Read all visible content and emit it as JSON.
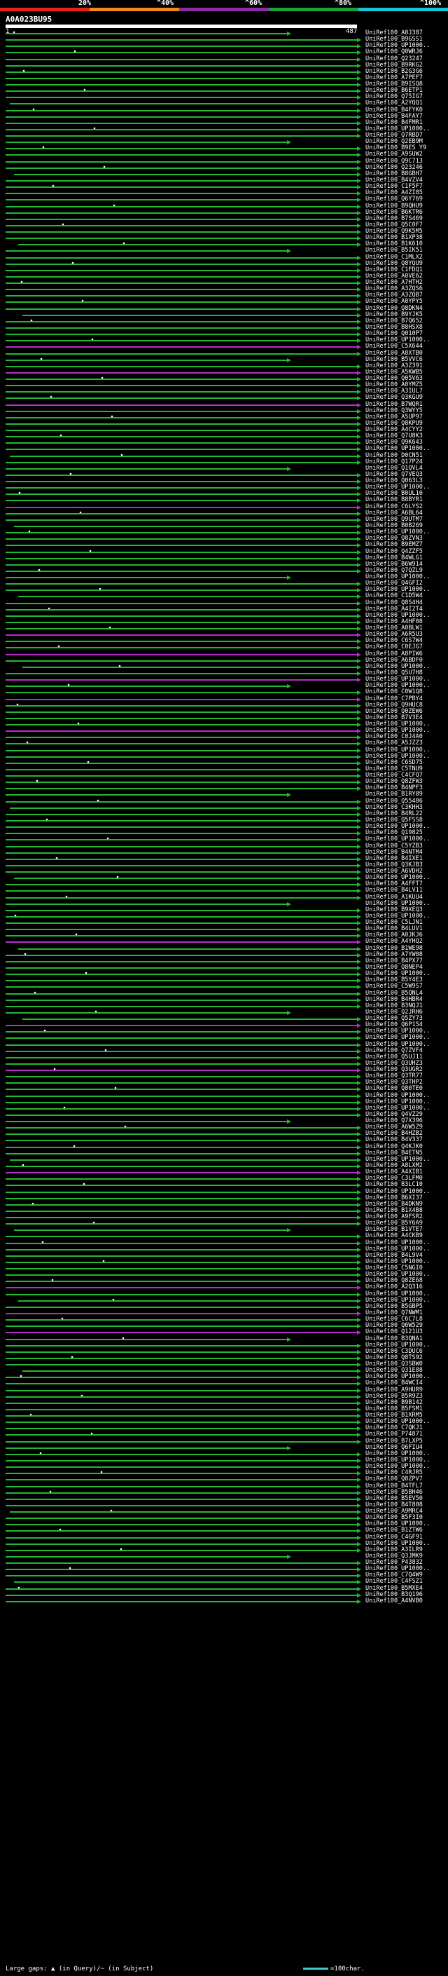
{
  "scale_labels": [
    "20%",
    "^40%",
    "^60%",
    "^80%",
    "^100%"
  ],
  "scale_colors": [
    "#e8201c",
    "#f08a1c",
    "#8e2ca8",
    "#1aa23a",
    "#17c6d6"
  ],
  "query": {
    "id": "A0A023BU95",
    "start": "1",
    "end": "487"
  },
  "colors": {
    "hit": "#22b832",
    "hit_alt": "#b42ec8",
    "query": "#ffffff",
    "background": "#000000"
  },
  "hits": [
    "UniRef100_A0J387",
    "UniRef100_B9GSS1",
    "UniRef100_UP1000..",
    "UniRef100_Q0WRJ6",
    "UniRef100_Q23247",
    "UniRef100_B9RKG2",
    "UniRef100_B2G3G6",
    "UniRef100_A7PEF7",
    "UniRef100_B9ISQ8",
    "UniRef100_B6ETP1",
    "UniRef100_Q75IG7",
    "UniRef100_A2YQQ1",
    "UniRef100_B4FYK0",
    "UniRef100_B4FAY7",
    "UniRef100_B4FMR1",
    "UniRef100_UP1000..",
    "UniRef100_Q7RBD7",
    "UniRef100_Q2EB9M",
    "UniRef100_B9ES Y9",
    "UniRef100_A9SUW2",
    "UniRef100_Q9C713",
    "UniRef100_Q23246",
    "UniRef100_B8GBH7",
    "UniRef100_B4VZV4",
    "UniRef100_C1F5F7",
    "UniRef100_A4ZI85",
    "UniRef100_Q6Y769",
    "UniRef100_B9QHU9",
    "UniRef100_B6KTR6",
    "UniRef100_B7S469",
    "UniRef100_Q5C0F7",
    "UniRef100_Q9K5M5",
    "UniRef100_B1XP38",
    "UniRef100_B1K610",
    "UniRef100_B5IK51",
    "UniRef100_C1MLX2",
    "UniRef100_Q8YQU9",
    "UniRef100_C1FDQ1",
    "UniRef100_A0VE62",
    "UniRef100_A7HTH2",
    "UniRef100_A3ZQS6",
    "UniRef100_A3ZQB7",
    "UniRef100_A0YPY5",
    "UniRef100_Q8DKN4",
    "UniRef100_B9YJK5",
    "UniRef100_B7Q652",
    "UniRef100_B8HSX8",
    "UniRef100_Q010P7",
    "UniRef100_UP1000..",
    "UniRef100_C5X644",
    "UniRef100_A8XTB0",
    "UniRef100_B5VVC6",
    "UniRef100_A3Z391",
    "UniRef100_A5KWB5",
    "UniRef100_Q05V63",
    "UniRef100_A0YMZ5",
    "UniRef100_A3IUL7",
    "UniRef100_Q3KGU9",
    "UniRef100_B7WQR1",
    "UniRef100_Q3WYY5",
    "UniRef100_A5UP97",
    "UniRef100_Q8KPU9",
    "UniRef100_A4CYY2",
    "UniRef100_Q7U8K3",
    "UniRef100_Q9K643",
    "UniRef100_UP1000..",
    "UniRef100_D0CN51",
    "UniRef100_Q17P24",
    "UniRef100_Q1QVL4",
    "UniRef100_Q7VEQ3",
    "UniRef100_Q063L3",
    "UniRef100_UP1000..",
    "UniRef100_B0UL10",
    "UniRef100_B8BYR1",
    "UniRef100_C6LYS2",
    "UniRef100_A6BL64",
    "UniRef100_Q9UTM7",
    "UniRef100_B0B269",
    "UniRef100_UP1000..",
    "UniRef100_Q8ZVN3",
    "UniRef100_B9EMZ7",
    "UniRef100_Q4ZZF5",
    "UniRef100_B4WLG1",
    "UniRef100_B6W914",
    "UniRef100_Q7QZL9",
    "UniRef100_UP1000..",
    "UniRef100_Q4GFI2",
    "UniRef100_UP1000..",
    "UniRef100_C1D5W4",
    "UniRef100_Q8S4H4",
    "UniRef100_A4I2T4",
    "UniRef100_UP1000..",
    "UniRef100_A4HF08",
    "UniRef100_A0BLW1",
    "UniRef100_A6R5U3",
    "UniRef100_C6S7W4",
    "UniRef100_C0EJG7",
    "UniRef100_A8PIW6",
    "UniRef100_A6BDF0",
    "UniRef100_UP1000..",
    "UniRef100_Q5U7H8",
    "UniRef100_UP1000..",
    "UniRef100_UP1000..",
    "UniRef100_C0W1Q8",
    "UniRef100_C7PBY4",
    "UniRef100_Q9HUC8",
    "UniRef100_Q0ZEW6",
    "UniRef100_B7V3E4",
    "UniRef100_UP1000..",
    "UniRef100_UP1000..",
    "UniRef100_C0J4A0",
    "UniRef100_A5JZZ3",
    "UniRef100_UP1000..",
    "UniRef100_UP1000..",
    "UniRef100_C6SD75",
    "UniRef100_C5TNU9",
    "UniRef100_C4CFQ7",
    "UniRef100_Q8ZFW3",
    "UniRef100_B4NPF3",
    "UniRef100_B1RY89",
    "UniRef100_Q55486",
    "UniRef100_C3KHH3",
    "UniRef100_B4RL22",
    "UniRef100_Q5FSS8",
    "UniRef100_UP1000..",
    "UniRef100_Q19825",
    "UniRef100_UP1000..",
    "UniRef100_C5YZB3",
    "UniRef100_B4NTM4",
    "UniRef100_B4IXE1",
    "UniRef100_Q3KJB3",
    "UniRef100_A6VDH2",
    "UniRef100_UP1000..",
    "UniRef100_A4FFT7",
    "UniRef100_B4LV11",
    "UniRef100_A1KUU4",
    "UniRef100_UP1000..",
    "UniRef100_B9XEQ3",
    "UniRef100_UP1000..",
    "UniRef100_C5LJN1",
    "UniRef100_B4LUV1",
    "UniRef100_A0JKJ6",
    "UniRef100_A4YHQ2",
    "UniRef100_B1WE98",
    "UniRef100_A7YW08",
    "UniRef100_B4PX77",
    "UniRef100_Q8NEP4",
    "UniRef100_UP1000..",
    "UniRef100_B5Y4E3",
    "UniRef100_C5W9S7",
    "UniRef100_B5QNL4",
    "UniRef100_B4HBR4",
    "UniRef100_B3NQJ1",
    "UniRef100_Q2JRH6",
    "UniRef100_Q5ZY73",
    "UniRef100_Q6P154",
    "UniRef100_UP1000..",
    "UniRef100_UP1000..",
    "UniRef100_UP1000..",
    "UniRef100_Q7ZVF4",
    "UniRef100_Q5UJ11",
    "UniRef100_Q3UHZ3",
    "UniRef100_Q3UGR2",
    "UniRef100_Q3TR77",
    "UniRef100_Q3THP2",
    "UniRef100_Q80TE0",
    "UniRef100_UP1000..",
    "UniRef100_UP1000..",
    "UniRef100_UP1000..",
    "UniRef100_Q4VZ29",
    "UniRef100_Q7X396",
    "UniRef100_A6W5Z9",
    "UniRef100_B4HZB2",
    "UniRef100_B4V337",
    "UniRef100_Q4KJK0",
    "UniRef100_B4ETN5",
    "UniRef100_UP1000..",
    "UniRef100_A8LXM2",
    "UniRef100_A4XIB1",
    "UniRef100_C3LFM0",
    "UniRef100_B3LC10",
    "UniRef100_UP1000..",
    "UniRef100_B6XI37",
    "UniRef100_B4DKN9",
    "UniRef100_B1X4B8",
    "UniRef100_A9FSR2",
    "UniRef100_B5Y6A9",
    "UniRef100_B1VTE7",
    "UniRef100_A4CKB9",
    "UniRef100_UP1000..",
    "UniRef100_UP1000..",
    "UniRef100_B4L9V4",
    "UniRef100_UP1000..",
    "UniRef100_C5NGI0",
    "UniRef100_UP1000..",
    "UniRef100_Q8ZE68",
    "UniRef100_A2Q316",
    "UniRef100_UP1000..",
    "UniRef100_UP1000..",
    "UniRef100_B5GBP5",
    "UniRef100_Q7NWM1",
    "UniRef100_C6C7L8",
    "UniRef100_Q6W529",
    "UniRef100_Q121U3",
    "UniRef100_B3QNA1",
    "UniRef100_UP1000..",
    "UniRef100_C3DUC6",
    "UniRef100_Q8TS92",
    "UniRef100_Q3SBW0",
    "UniRef100_Q31E88",
    "UniRef100_UP1000..",
    "UniRef100_B4WCI4",
    "UniRef100_A9HUR9",
    "UniRef100_B5R9Z3",
    "UniRef100_B9B142",
    "UniRef100_B5FSM1",
    "UniRef100_B1XRM5",
    "UniRef100_UP1000..",
    "UniRef100_C7QKJ1",
    "UniRef100_P74871",
    "UniRef100_B7LXP5",
    "UniRef100_Q6FIU4",
    "UniRef100_UP1000..",
    "UniRef100_UP1000..",
    "UniRef100_UP1000..",
    "UniRef100_C4RJR5",
    "UniRef100_Q8ZPV7",
    "UniRef100_B4TFL7",
    "UniRef100_B5BH46",
    "UniRef100_B5EV50",
    "UniRef100_B4T808",
    "UniRef100_A9MRC4",
    "UniRef100_B5F3I0",
    "UniRef100_UP1000..",
    "UniRef100_B1ZTW6",
    "UniRef100_C4GF91",
    "UniRef100_UP1000..",
    "UniRef100_A3ILR9",
    "UniRef100_Q3JMK9",
    "UniRef100_P43832",
    "UniRef100_UP1000..",
    "UniRef100_C7Q4W9",
    "UniRef100_C4FSZ1",
    "UniRef100_B5MXE4",
    "UniRef100_B3Q196",
    "UniRef100_A4NVB0"
  ],
  "legend": {
    "text": "Large gaps: ▲ (in Query)/~ (in Subject)",
    "scale": "=100char."
  }
}
